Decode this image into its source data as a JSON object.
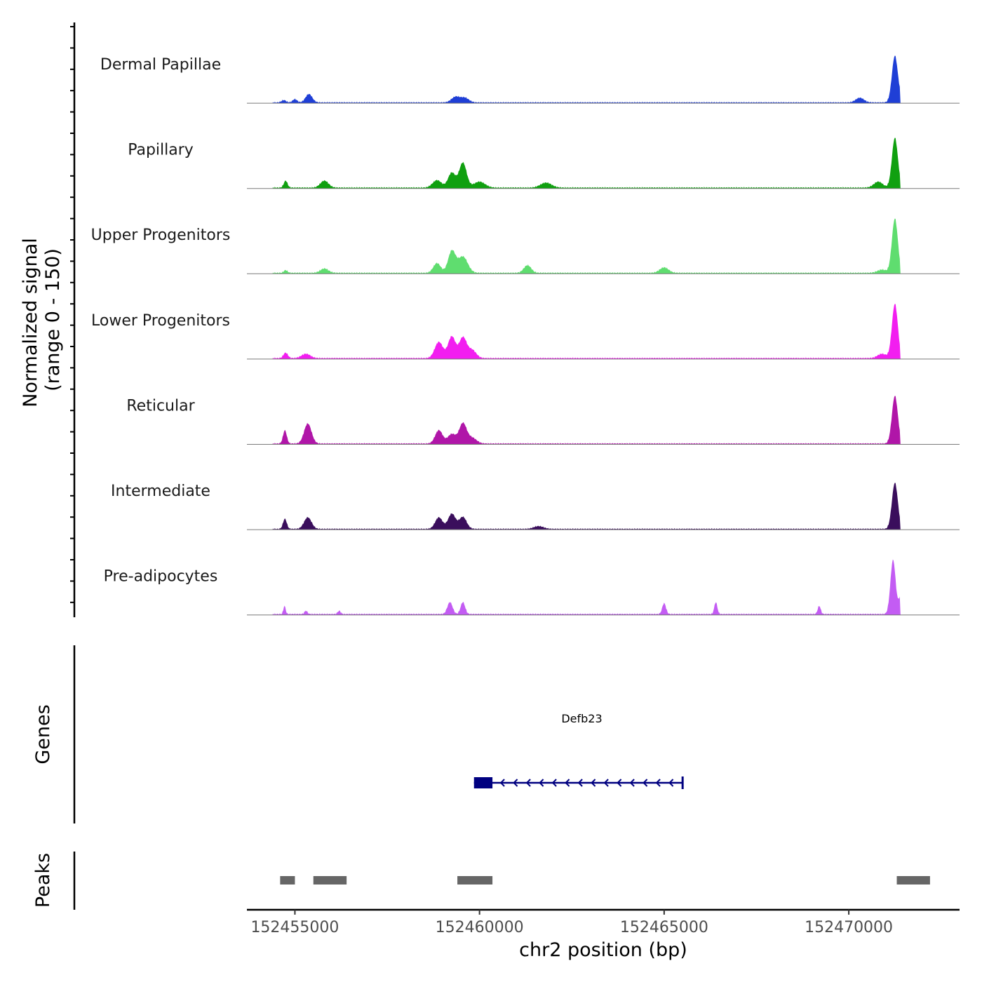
{
  "chart_data": {
    "type": "area",
    "title": "",
    "ylabel_line1": "Normalized signal",
    "ylabel_line2": "(range 0 - 150)",
    "y_range": [
      0,
      150
    ],
    "xlabel": "chr2 position (bp)",
    "x_range": [
      152453700,
      152473000
    ],
    "x_ticks": [
      152455000,
      152460000,
      152465000,
      152470000
    ],
    "x_tick_labels": [
      "152455000",
      "152460000",
      "152465000",
      "152470000"
    ],
    "signal_tracks": [
      {
        "name": "Dermal Papillae",
        "color": "#1f3fd6",
        "scale": 0.86,
        "peaks": [
          [
            152454700,
            0.05,
            60
          ],
          [
            152455000,
            0.07,
            60
          ],
          [
            152455380,
            0.18,
            90
          ],
          [
            152459350,
            0.12,
            110
          ],
          [
            152459600,
            0.1,
            110
          ],
          [
            152470300,
            0.1,
            110
          ],
          [
            152471250,
            1.0,
            80
          ],
          [
            152471450,
            0.14,
            60
          ]
        ]
      },
      {
        "name": "Papillary",
        "color": "#10a010",
        "scale": 0.92,
        "peaks": [
          [
            152454750,
            0.14,
            50
          ],
          [
            152455800,
            0.14,
            110
          ],
          [
            152458850,
            0.15,
            120
          ],
          [
            152459250,
            0.3,
            100
          ],
          [
            152459550,
            0.5,
            100
          ],
          [
            152460000,
            0.12,
            150
          ],
          [
            152461800,
            0.1,
            150
          ],
          [
            152470800,
            0.12,
            120
          ],
          [
            152471250,
            1.0,
            80
          ],
          [
            152471500,
            0.15,
            60
          ]
        ]
      },
      {
        "name": "Upper Progenitors",
        "color": "#5fdd6f",
        "scale": 1.0,
        "peaks": [
          [
            152454750,
            0.05,
            50
          ],
          [
            152455800,
            0.08,
            110
          ],
          [
            152458850,
            0.18,
            100
          ],
          [
            152459250,
            0.4,
            100
          ],
          [
            152459550,
            0.3,
            130
          ],
          [
            152461300,
            0.14,
            100
          ],
          [
            152465000,
            0.1,
            120
          ],
          [
            152470900,
            0.06,
            120
          ],
          [
            152471250,
            1.0,
            80
          ]
        ]
      },
      {
        "name": "Lower Progenitors",
        "color": "#f21ef0",
        "scale": 1.0,
        "peaks": [
          [
            152454750,
            0.1,
            60
          ],
          [
            152455300,
            0.08,
            120
          ],
          [
            152458900,
            0.3,
            110
          ],
          [
            152459250,
            0.4,
            100
          ],
          [
            152459550,
            0.38,
            100
          ],
          [
            152459800,
            0.15,
            110
          ],
          [
            152470900,
            0.08,
            120
          ],
          [
            152471250,
            1.0,
            80
          ]
        ]
      },
      {
        "name": "Reticular",
        "color": "#b016a8",
        "scale": 0.88,
        "peaks": [
          [
            152454730,
            0.28,
            50
          ],
          [
            152455350,
            0.42,
            100
          ],
          [
            152458900,
            0.28,
            100
          ],
          [
            152459250,
            0.2,
            110
          ],
          [
            152459550,
            0.42,
            100
          ],
          [
            152459800,
            0.12,
            120
          ],
          [
            152471250,
            1.0,
            80
          ],
          [
            152471500,
            0.12,
            60
          ]
        ]
      },
      {
        "name": "Intermediate",
        "color": "#3a0e5c",
        "scale": 0.85,
        "peaks": [
          [
            152454730,
            0.22,
            50
          ],
          [
            152455350,
            0.25,
            100
          ],
          [
            152458900,
            0.25,
            100
          ],
          [
            152459250,
            0.33,
            100
          ],
          [
            152459550,
            0.26,
            100
          ],
          [
            152461600,
            0.06,
            130
          ],
          [
            152471250,
            1.0,
            80
          ]
        ]
      },
      {
        "name": "Pre-adipocytes",
        "color": "#c35cf3",
        "scale": 1.0,
        "peaks": [
          [
            152454720,
            0.15,
            30
          ],
          [
            152455300,
            0.06,
            40
          ],
          [
            152456200,
            0.06,
            40
          ],
          [
            152459200,
            0.22,
            70
          ],
          [
            152459550,
            0.22,
            60
          ],
          [
            152465000,
            0.2,
            50
          ],
          [
            152466400,
            0.22,
            40
          ],
          [
            152469200,
            0.15,
            40
          ],
          [
            152471200,
            1.0,
            70
          ],
          [
            152471400,
            0.3,
            50
          ]
        ]
      }
    ],
    "genes_label": "Genes",
    "gene": {
      "name": "Defb23",
      "color": "#000080",
      "start": 152459850,
      "end": 152465500,
      "exon_start": 152459850,
      "exon_end": 152460350,
      "strand": "-"
    },
    "peaks_label": "Peaks",
    "peak_regions": [
      [
        152454600,
        152455000
      ],
      [
        152455500,
        152456400
      ],
      [
        152459400,
        152460350
      ],
      [
        152471300,
        152472200
      ]
    ]
  }
}
